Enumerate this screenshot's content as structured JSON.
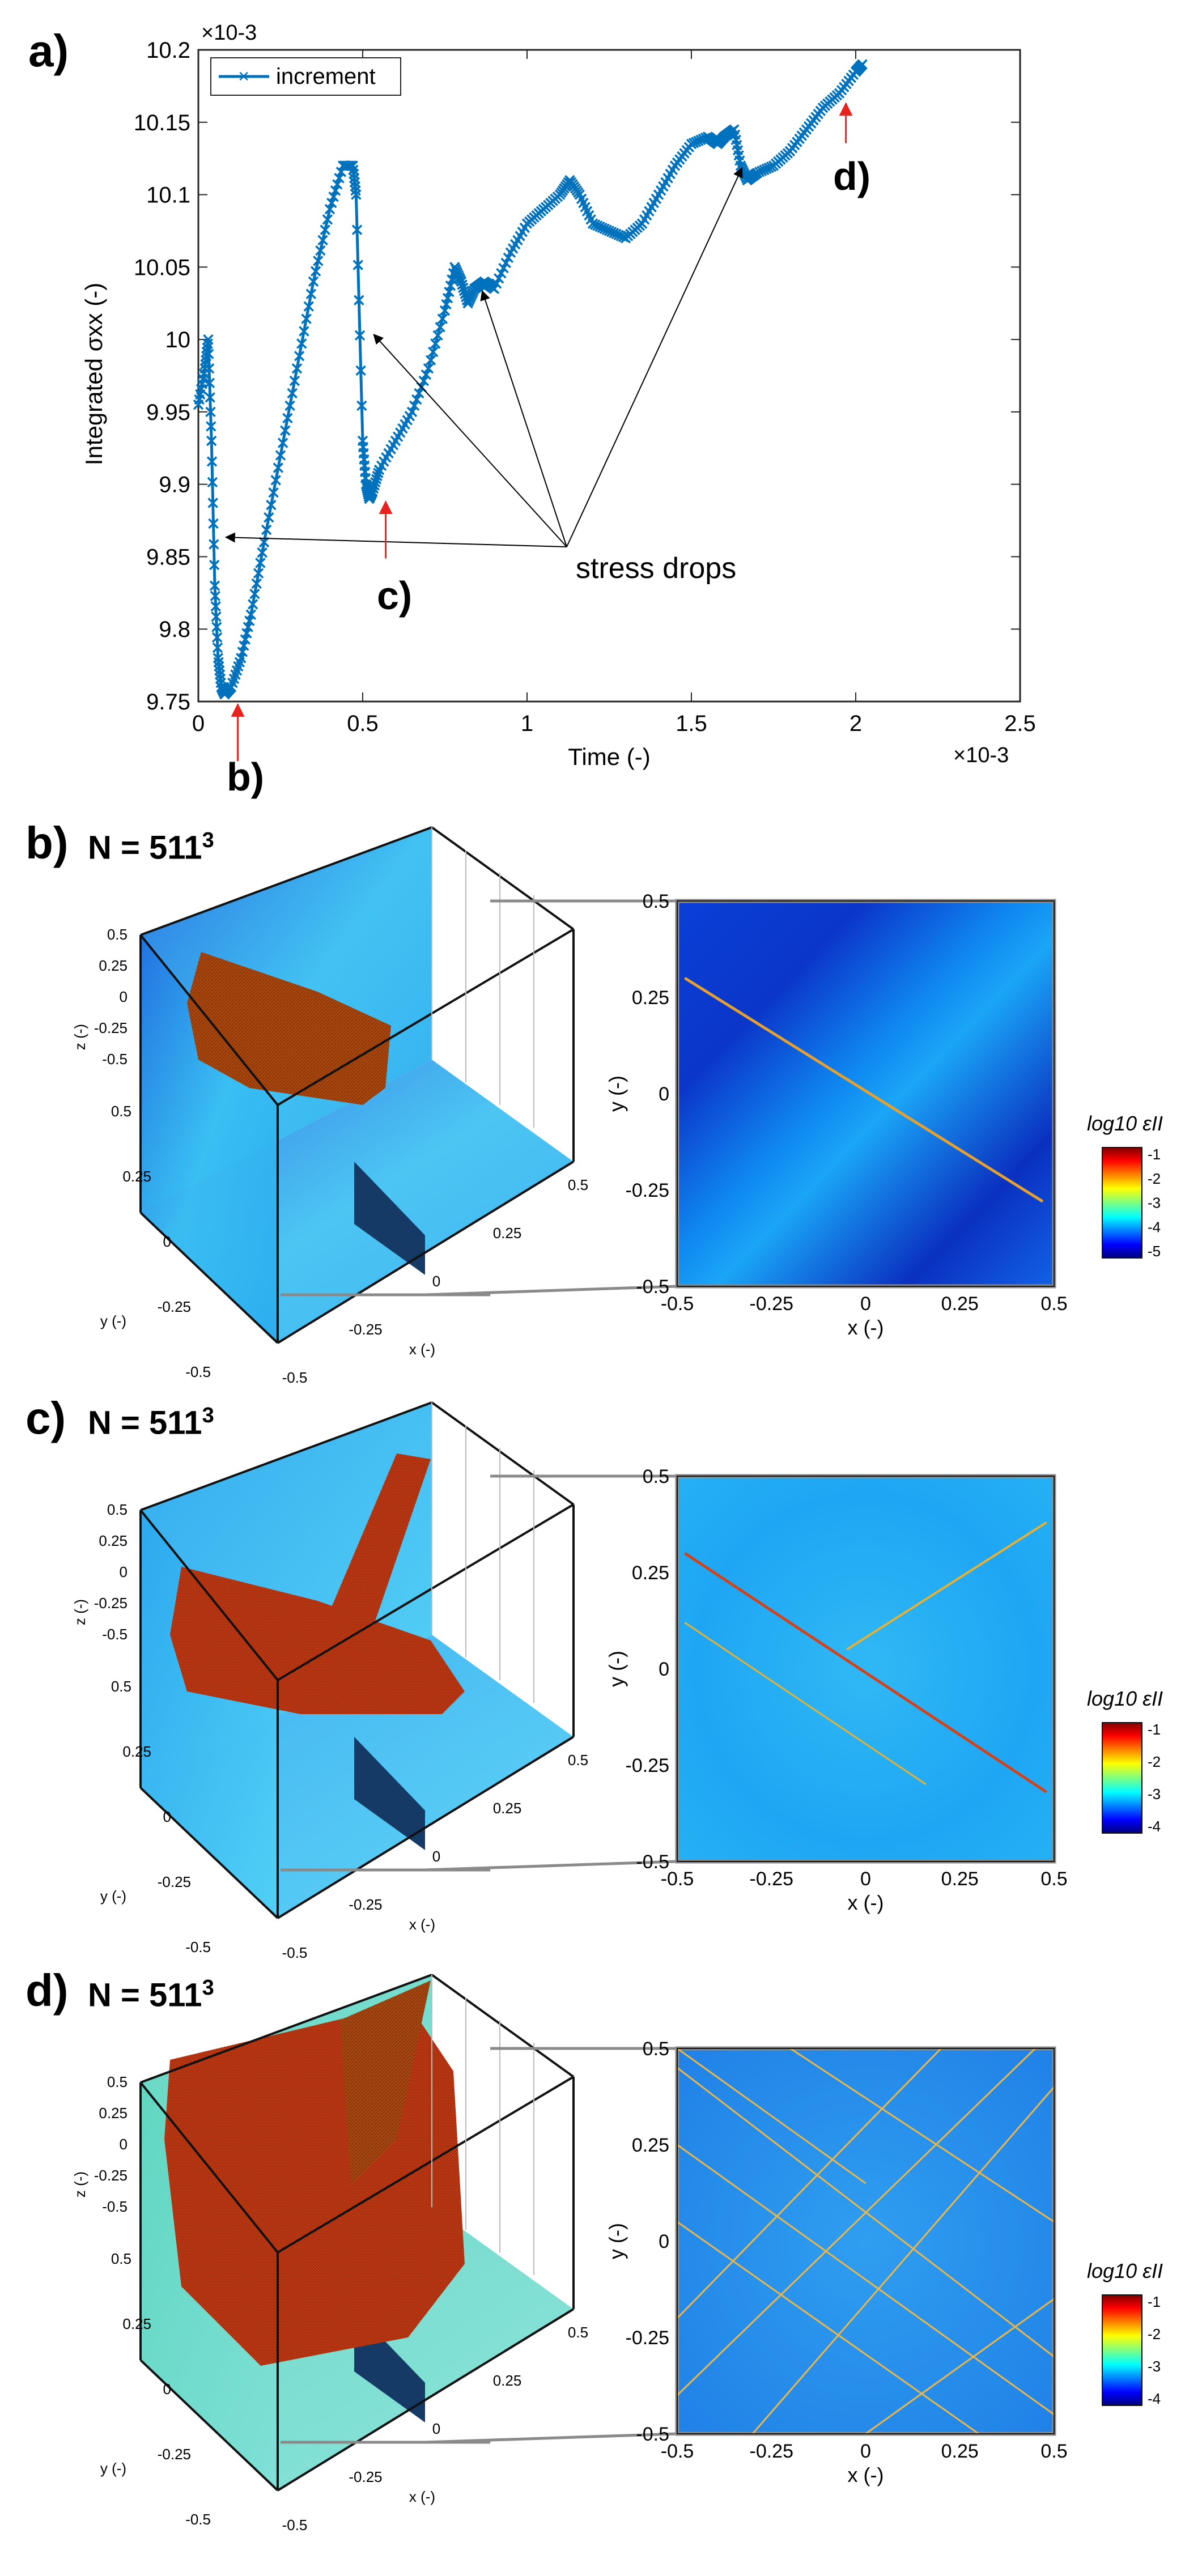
{
  "chart_data": {
    "type": "line",
    "xlabel": "Time (-)",
    "ylabel": "Integrated σxx (-)",
    "x_scale_label": "×10-3",
    "y_scale_label": "×10-3",
    "xlim": [
      0,
      2.5
    ],
    "ylim": [
      9.75,
      10.2
    ],
    "x_ticks": [
      "0",
      "0.5",
      "1",
      "1.5",
      "2",
      "2.5"
    ],
    "y_ticks": [
      "9.75",
      "9.8",
      "9.85",
      "9.9",
      "9.95",
      "10",
      "10.05",
      "10.1",
      "10.15",
      "10.2"
    ],
    "legend": "top-left",
    "series": [
      {
        "name": "increment",
        "x": [
          0,
          0.02,
          0.03,
          0.04,
          0.05,
          0.06,
          0.07,
          0.08,
          0.1,
          0.13,
          0.16,
          0.2,
          0.25,
          0.3,
          0.35,
          0.4,
          0.44,
          0.47,
          0.48,
          0.5,
          0.51,
          0.52,
          0.53,
          0.55,
          0.6,
          0.65,
          0.7,
          0.75,
          0.78,
          0.8,
          0.82,
          0.84,
          0.87,
          0.9,
          0.95,
          1.0,
          1.05,
          1.1,
          1.13,
          1.16,
          1.2,
          1.25,
          1.3,
          1.35,
          1.4,
          1.45,
          1.5,
          1.55,
          1.58,
          1.6,
          1.63,
          1.65,
          1.67,
          1.7,
          1.75,
          1.8,
          1.85,
          1.9,
          1.95,
          2.0,
          2.02
        ],
        "y": [
          9.955,
          9.98,
          10.0,
          9.93,
          9.83,
          9.78,
          9.76,
          9.755,
          9.76,
          9.78,
          9.81,
          9.86,
          9.92,
          9.98,
          10.04,
          10.09,
          10.12,
          10.12,
          10.1,
          9.93,
          9.9,
          9.89,
          9.895,
          9.91,
          9.93,
          9.95,
          9.98,
          10.02,
          10.05,
          10.04,
          10.025,
          10.035,
          10.04,
          10.035,
          10.06,
          10.08,
          10.09,
          10.1,
          10.11,
          10.1,
          10.08,
          10.075,
          10.07,
          10.08,
          10.1,
          10.12,
          10.135,
          10.14,
          10.135,
          10.14,
          10.145,
          10.12,
          10.11,
          10.115,
          10.12,
          10.13,
          10.145,
          10.16,
          10.17,
          10.185,
          10.19
        ]
      }
    ],
    "annotations": {
      "stress_drops_label": "stress drops",
      "marker_b": "b)",
      "marker_c": "c)",
      "marker_d": "d)",
      "stress_drop_arrow_targets": [
        [
          0.07,
          9.865
        ],
        [
          0.52,
          10.005
        ],
        [
          0.85,
          10.035
        ],
        [
          1.64,
          10.12
        ]
      ],
      "red_marker_points": [
        [
          0.12,
          9.755
        ],
        [
          0.57,
          9.895
        ],
        [
          1.97,
          10.17
        ]
      ]
    }
  },
  "panel_a": {
    "letter": "a)"
  },
  "panels": [
    {
      "letter": "b)",
      "n_base": "N = 511",
      "n_exp": "3",
      "colorbar": {
        "title": "log10 εII",
        "ticks": [
          "-1",
          "-2",
          "-3",
          "-4",
          "-5"
        ]
      },
      "slice_ticks_x": [
        "-0.5",
        "-0.25",
        "0",
        "0.25",
        "0.5"
      ],
      "slice_ticks_y": [
        "0.5",
        "0.25",
        "0",
        "-0.25",
        "-0.5"
      ],
      "slice_xlabel": "x (-)",
      "slice_ylabel": "y (-)",
      "cube_z_ticks": [
        "0.5",
        "0.25",
        "0",
        "-0.25",
        "-0.5"
      ],
      "cube_y_ticks": [
        "0.5",
        "0.25",
        "0",
        "-0.25",
        "-0.5"
      ],
      "cube_x_ticks": [
        "-0.5",
        "-0.25",
        "0",
        "0.25",
        "0.5"
      ],
      "cube_zlabel": "z (-)",
      "cube_ylabel": "y (-)",
      "cube_xlabel": "x (-)"
    },
    {
      "letter": "c)",
      "n_base": "N = 511",
      "n_exp": "3",
      "colorbar": {
        "title": "log10 εII",
        "ticks": [
          "-1",
          "-2",
          "-3",
          "-4"
        ]
      },
      "slice_ticks_x": [
        "-0.5",
        "-0.25",
        "0",
        "0.25",
        "0.5"
      ],
      "slice_ticks_y": [
        "0.5",
        "0.25",
        "0",
        "-0.25",
        "-0.5"
      ],
      "slice_xlabel": "x (-)",
      "slice_ylabel": "y (-)",
      "cube_z_ticks": [
        "0.5",
        "0.25",
        "0",
        "-0.25",
        "-0.5"
      ],
      "cube_y_ticks": [
        "0.5",
        "0.25",
        "0",
        "-0.25",
        "-0.5"
      ],
      "cube_x_ticks": [
        "-0.5",
        "-0.25",
        "0",
        "0.25",
        "0.5"
      ],
      "cube_zlabel": "z (-)",
      "cube_ylabel": "y (-)",
      "cube_xlabel": "x (-)"
    },
    {
      "letter": "d)",
      "n_base": "N = 511",
      "n_exp": "3",
      "colorbar": {
        "title": "log10 εII",
        "ticks": [
          "-1",
          "-2",
          "-3",
          "-4"
        ]
      },
      "slice_ticks_x": [
        "-0.5",
        "-0.25",
        "0",
        "0.25",
        "0.5"
      ],
      "slice_ticks_y": [
        "0.5",
        "0.25",
        "0",
        "-0.25",
        "-0.5"
      ],
      "slice_xlabel": "x (-)",
      "slice_ylabel": "y (-)",
      "cube_z_ticks": [
        "0.5",
        "0.25",
        "0",
        "-0.25",
        "-0.5"
      ],
      "cube_y_ticks": [
        "0.5",
        "0.25",
        "0",
        "-0.25",
        "-0.5"
      ],
      "cube_x_ticks": [
        "-0.5",
        "-0.25",
        "0",
        "0.25",
        "0.5"
      ],
      "cube_zlabel": "z (-)",
      "cube_ylabel": "y (-)",
      "cube_xlabel": "x (-)"
    }
  ]
}
